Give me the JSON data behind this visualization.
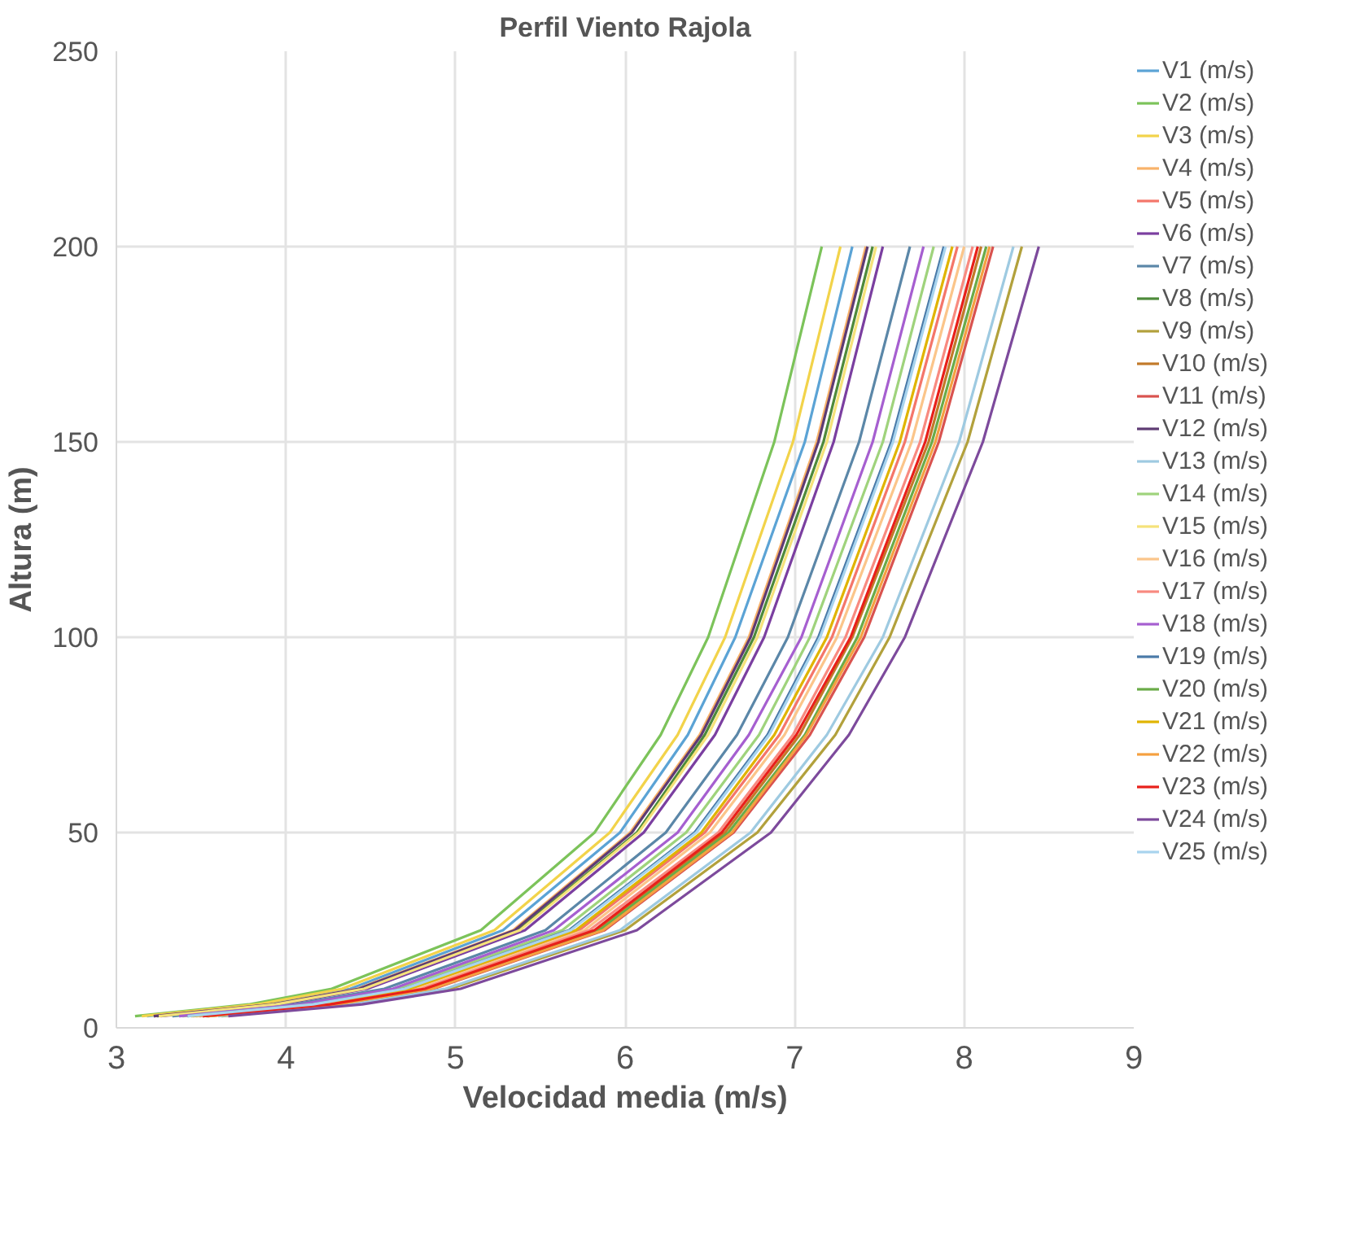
{
  "chart_data": {
    "type": "line",
    "title": "Perfil Viento Rajola",
    "xlabel": "Velocidad media (m/s)",
    "ylabel": "Altura (m)",
    "xlim": [
      3,
      9
    ],
    "xticks": [
      3,
      4,
      5,
      6,
      7,
      8,
      9
    ],
    "ylim": [
      0,
      250
    ],
    "yticks": [
      0,
      50,
      100,
      150,
      200,
      250
    ],
    "grid": true,
    "legend": "right",
    "marker": "none",
    "line_style": "solid",
    "series": [
      {
        "name": "V1 (m/s)",
        "color": "#5ba3d5",
        "x": [
          3.18,
          3.87,
          4.38,
          5.28,
          5.97,
          6.37,
          6.65,
          7.06,
          7.34
        ],
        "values": [
          3,
          6,
          10,
          25,
          50,
          75,
          100,
          150,
          200
        ]
      },
      {
        "name": "V2 (m/s)",
        "color": "#7cc35a",
        "x": [
          3.11,
          3.78,
          4.27,
          5.15,
          5.82,
          6.21,
          6.49,
          6.88,
          7.16
        ],
        "values": [
          3,
          6,
          10,
          25,
          50,
          75,
          100,
          150,
          200
        ]
      },
      {
        "name": "V3 (m/s)",
        "color": "#f2d34a",
        "x": [
          3.15,
          3.83,
          4.33,
          5.23,
          5.91,
          6.31,
          6.59,
          6.99,
          7.27
        ],
        "values": [
          3,
          6,
          10,
          25,
          50,
          75,
          100,
          150,
          200
        ]
      },
      {
        "name": "V4 (m/s)",
        "color": "#f8b26a",
        "x": [
          3.22,
          3.91,
          4.42,
          5.34,
          6.03,
          6.44,
          6.73,
          7.13,
          7.42
        ],
        "values": [
          3,
          6,
          10,
          25,
          50,
          75,
          100,
          150,
          200
        ]
      },
      {
        "name": "V5 (m/s)",
        "color": "#f4766a",
        "x": [
          3.45,
          4.2,
          4.75,
          5.73,
          6.47,
          6.91,
          7.22,
          7.65,
          7.96
        ],
        "values": [
          3,
          6,
          10,
          25,
          50,
          75,
          100,
          150,
          200
        ]
      },
      {
        "name": "V6 (m/s)",
        "color": "#7b3fa0",
        "x": [
          3.26,
          3.97,
          4.48,
          5.41,
          6.11,
          6.53,
          6.82,
          7.23,
          7.52
        ],
        "values": [
          3,
          6,
          10,
          25,
          50,
          75,
          100,
          150,
          200
        ]
      },
      {
        "name": "V7 (m/s)",
        "color": "#5b87a8",
        "x": [
          3.33,
          4.05,
          4.58,
          5.53,
          6.24,
          6.66,
          6.96,
          7.38,
          7.68
        ],
        "values": [
          3,
          6,
          10,
          25,
          50,
          75,
          100,
          150,
          200
        ]
      },
      {
        "name": "V8 (m/s)",
        "color": "#4e8a3a",
        "x": [
          3.24,
          3.93,
          4.45,
          5.37,
          6.07,
          6.47,
          6.76,
          7.17,
          7.46
        ],
        "values": [
          3,
          6,
          10,
          25,
          50,
          75,
          100,
          150,
          200
        ]
      },
      {
        "name": "V9 (m/s)",
        "color": "#b2a13c",
        "x": [
          3.62,
          4.4,
          4.97,
          6.0,
          6.78,
          7.24,
          7.56,
          8.02,
          8.34
        ],
        "values": [
          3,
          6,
          10,
          25,
          50,
          75,
          100,
          150,
          200
        ]
      },
      {
        "name": "V10 (m/s)",
        "color": "#c27a2a",
        "x": [
          3.51,
          4.27,
          4.83,
          5.83,
          6.59,
          7.03,
          7.34,
          7.79,
          8.1
        ],
        "values": [
          3,
          6,
          10,
          25,
          50,
          75,
          100,
          150,
          200
        ]
      },
      {
        "name": "V11 (m/s)",
        "color": "#d9534f",
        "x": [
          3.54,
          4.31,
          4.87,
          5.88,
          6.64,
          7.09,
          7.41,
          7.85,
          8.17
        ],
        "values": [
          3,
          6,
          10,
          25,
          50,
          75,
          100,
          150,
          200
        ]
      },
      {
        "name": "V12 (m/s)",
        "color": "#5e3b73",
        "x": [
          3.22,
          3.92,
          4.43,
          5.35,
          6.04,
          6.45,
          6.74,
          7.14,
          7.43
        ],
        "values": [
          3,
          6,
          10,
          25,
          50,
          75,
          100,
          150,
          200
        ]
      },
      {
        "name": "V13 (m/s)",
        "color": "#9ecae1",
        "x": [
          3.6,
          4.37,
          4.94,
          5.97,
          6.74,
          7.19,
          7.52,
          7.97,
          8.29
        ],
        "values": [
          3,
          6,
          10,
          25,
          50,
          75,
          100,
          150,
          200
        ]
      },
      {
        "name": "V14 (m/s)",
        "color": "#9fd37c",
        "x": [
          3.39,
          4.12,
          4.66,
          5.63,
          6.36,
          6.79,
          7.09,
          7.52,
          7.82
        ],
        "values": [
          3,
          6,
          10,
          25,
          50,
          75,
          100,
          150,
          200
        ]
      },
      {
        "name": "V15 (m/s)",
        "color": "#f5e27a",
        "x": [
          3.25,
          3.94,
          4.46,
          5.38,
          6.08,
          6.49,
          6.78,
          7.19,
          7.48
        ],
        "values": [
          3,
          6,
          10,
          25,
          50,
          75,
          100,
          150,
          200
        ]
      },
      {
        "name": "V16 (m/s)",
        "color": "#fbc58a",
        "x": [
          3.47,
          4.22,
          4.77,
          5.76,
          6.5,
          6.94,
          7.25,
          7.69,
          8.0
        ],
        "values": [
          3,
          6,
          10,
          25,
          50,
          75,
          100,
          150,
          200
        ]
      },
      {
        "name": "V17 (m/s)",
        "color": "#f88a80",
        "x": [
          3.49,
          4.24,
          4.8,
          5.79,
          6.55,
          6.99,
          7.3,
          7.74,
          8.05
        ],
        "values": [
          3,
          6,
          10,
          25,
          50,
          75,
          100,
          150,
          200
        ]
      },
      {
        "name": "V18 (m/s)",
        "color": "#a65fd0",
        "x": [
          3.37,
          4.09,
          4.63,
          5.58,
          6.31,
          6.73,
          7.04,
          7.46,
          7.76
        ],
        "values": [
          3,
          6,
          10,
          25,
          50,
          75,
          100,
          150,
          200
        ]
      },
      {
        "name": "V19 (m/s)",
        "color": "#4a7aa8",
        "x": [
          3.42,
          4.16,
          4.7,
          5.67,
          6.41,
          6.84,
          7.14,
          7.57,
          7.88
        ],
        "values": [
          3,
          6,
          10,
          25,
          50,
          75,
          100,
          150,
          200
        ]
      },
      {
        "name": "V20 (m/s)",
        "color": "#6aab48",
        "x": [
          3.53,
          4.29,
          4.85,
          5.85,
          6.61,
          7.06,
          7.37,
          7.81,
          8.13
        ],
        "values": [
          3,
          6,
          10,
          25,
          50,
          75,
          100,
          150,
          200
        ]
      },
      {
        "name": "V21 (m/s)",
        "color": "#e0b400",
        "x": [
          3.44,
          4.18,
          4.73,
          5.71,
          6.45,
          6.88,
          7.19,
          7.62,
          7.93
        ],
        "values": [
          3,
          6,
          10,
          25,
          50,
          75,
          100,
          150,
          200
        ]
      },
      {
        "name": "V22 (m/s)",
        "color": "#f5a040",
        "x": [
          3.54,
          4.3,
          4.86,
          5.87,
          6.63,
          7.07,
          7.39,
          7.83,
          8.15
        ],
        "values": [
          3,
          6,
          10,
          25,
          50,
          75,
          100,
          150,
          200
        ]
      },
      {
        "name": "V23 (m/s)",
        "color": "#e8201a",
        "x": [
          3.51,
          4.26,
          4.82,
          5.82,
          6.57,
          7.01,
          7.33,
          7.77,
          8.08
        ],
        "values": [
          3,
          6,
          10,
          25,
          50,
          75,
          100,
          150,
          200
        ]
      },
      {
        "name": "V24 (m/s)",
        "color": "#7d4a9c",
        "x": [
          3.66,
          4.45,
          5.03,
          6.07,
          6.86,
          7.32,
          7.65,
          8.11,
          8.44
        ],
        "values": [
          3,
          6,
          10,
          25,
          50,
          75,
          100,
          150,
          200
        ]
      },
      {
        "name": "V25 (m/s)",
        "color": "#a8d4ee",
        "x": [
          3.42,
          4.16,
          4.7,
          5.68,
          6.42,
          6.85,
          7.15,
          7.58,
          7.89
        ],
        "values": [
          3,
          6,
          10,
          25,
          50,
          75,
          100,
          150,
          200
        ]
      }
    ]
  }
}
